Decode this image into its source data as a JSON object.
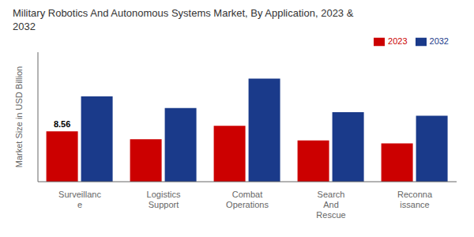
{
  "chart_data": {
    "type": "bar",
    "title": "Military Robotics And Autonomous Systems Market, By Application, 2023 &\n2032",
    "ylabel": "Market Size in USD Billion",
    "categories": [
      "Surveillanc\ne",
      "Logistics\nSupport",
      "Combat\nOperations",
      "Search\nAnd\nRescue",
      "Reconna\nissance"
    ],
    "series": [
      {
        "name": "2023",
        "color": "#cc0000",
        "values": [
          8.56,
          7.2,
          9.5,
          7.0,
          6.5
        ]
      },
      {
        "name": "2032",
        "color": "#1a3a8a",
        "values": [
          14.5,
          12.5,
          17.5,
          11.8,
          11.2
        ]
      }
    ],
    "ylim": [
      0,
      22
    ],
    "yticks": [],
    "grid": false,
    "legend": "upper right",
    "tick_labels": "x",
    "annotations": [
      {
        "text": "8.56",
        "category": "Surveillanc\ne",
        "series": "2023"
      }
    ]
  }
}
